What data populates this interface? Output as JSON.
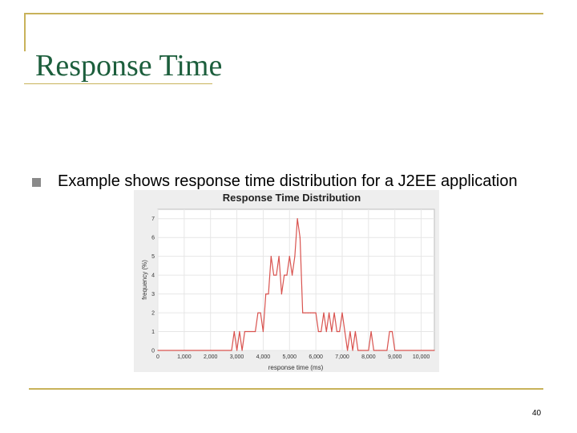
{
  "slide": {
    "title": "Response Time",
    "bullet_text": "Example shows response time distribution for a J2EE application",
    "page_number": "40"
  },
  "colors": {
    "title": "#1c5e3c",
    "rule": "#c8b25a",
    "series_line": "#d9534f"
  },
  "chart_data": {
    "type": "line",
    "title": "Response Time Distribution",
    "xlabel": "response time (ms)",
    "ylabel": "frequency (%)",
    "xlim": [
      0,
      10500
    ],
    "ylim": [
      0,
      7.5
    ],
    "x_ticks": [
      0,
      1000,
      2000,
      3000,
      4000,
      5000,
      6000,
      7000,
      8000,
      9000,
      10000
    ],
    "x_tick_labels": [
      "0",
      "1,000",
      "2,000",
      "3,000",
      "4,000",
      "5,000",
      "6,000",
      "7,000",
      "8,000",
      "9,000",
      "10,000"
    ],
    "y_ticks": [
      0,
      1,
      2,
      3,
      4,
      5,
      6,
      7
    ],
    "y_tick_labels": [
      "0",
      "1",
      "2",
      "3",
      "4",
      "5",
      "6",
      "7"
    ],
    "grid": true,
    "series": [
      {
        "x": [
          0,
          2800,
          2900,
          3000,
          3100,
          3200,
          3300,
          3700,
          3800,
          3900,
          4000,
          4100,
          4200,
          4300,
          4400,
          4500,
          4600,
          4700,
          4800,
          4900,
          5000,
          5100,
          5200,
          5300,
          5400,
          5500,
          5600,
          5700,
          5800,
          5900,
          6000,
          6100,
          6200,
          6300,
          6400,
          6500,
          6600,
          6700,
          6800,
          6900,
          7000,
          7100,
          7200,
          7300,
          7400,
          7500,
          7600,
          7700,
          8000,
          8100,
          8200,
          8300,
          8400,
          8700,
          8800,
          8900,
          9000,
          10500
        ],
        "y": [
          0,
          0,
          1,
          0,
          1,
          0,
          1,
          1,
          2,
          2,
          1,
          3,
          3,
          5,
          4,
          4,
          5,
          3,
          4,
          4,
          5,
          4,
          5,
          7,
          6,
          2,
          2,
          2,
          2,
          2,
          2,
          1,
          1,
          2,
          1,
          2,
          1,
          2,
          1,
          1,
          2,
          1,
          0,
          1,
          0,
          1,
          0,
          0,
          0,
          1,
          0,
          0,
          0,
          0,
          1,
          1,
          0,
          0
        ]
      }
    ]
  }
}
